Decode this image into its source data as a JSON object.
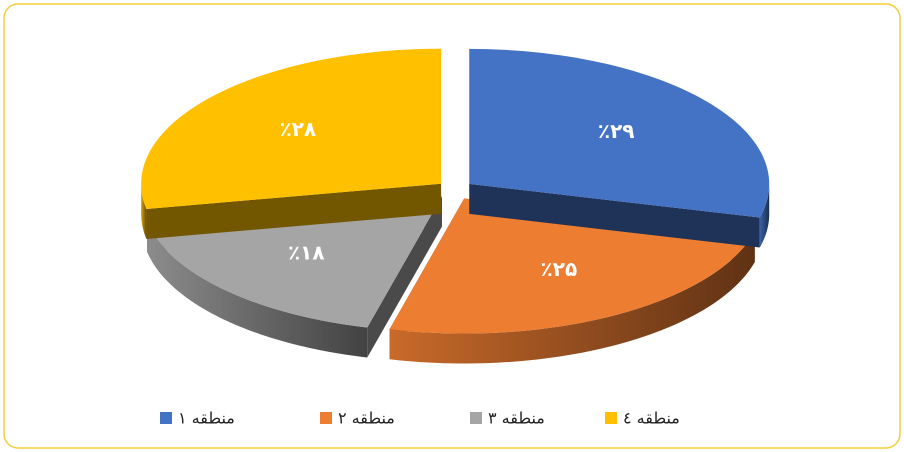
{
  "chart_data": {
    "type": "pie",
    "categories": [
      "منطقه ۱",
      "منطقه ۲",
      "منطقه ۳",
      "منطقه ٤"
    ],
    "values": [
      29,
      25,
      18,
      28
    ],
    "value_labels": [
      "٪۲۹",
      "٪۲۵",
      "٪۱۸",
      "٪۲۸"
    ],
    "colors": [
      "#4472c4",
      "#ed7d31",
      "#a5a5a5",
      "#ffc000"
    ],
    "legend": "bottom"
  }
}
